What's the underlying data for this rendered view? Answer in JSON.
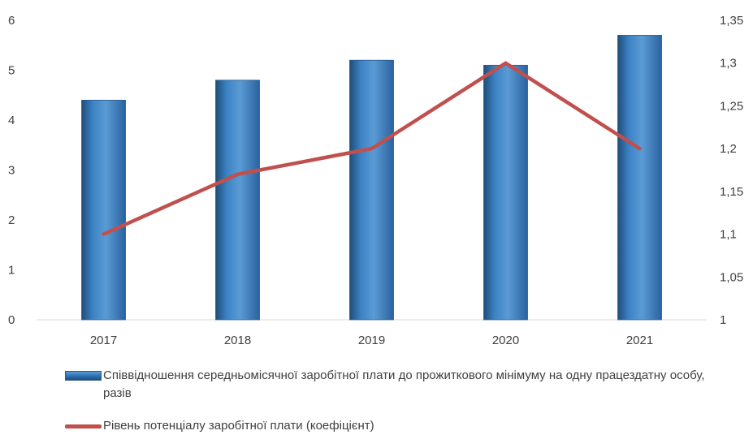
{
  "chart_data": {
    "type": "bar",
    "categories": [
      "2017",
      "2018",
      "2019",
      "2020",
      "2021"
    ],
    "series": [
      {
        "name": "Співвідношення  середньомісячної заробітної плати до прожиткового мінімуму на одну працездатну особу, разів",
        "type": "bar",
        "axis": "left",
        "values": [
          4.4,
          4.8,
          5.2,
          5.1,
          5.7
        ],
        "color": "#2e75b6"
      },
      {
        "name": "Рівень потенціалу заробітної плати (коефіцієнт)",
        "type": "line",
        "axis": "right",
        "values": [
          1.1,
          1.17,
          1.2,
          1.3,
          1.2
        ],
        "color": "#c0504d"
      }
    ],
    "y_left": {
      "ylim": [
        0,
        6
      ],
      "ticks": [
        "0",
        "1",
        "2",
        "3",
        "4",
        "5",
        "6"
      ]
    },
    "y_right": {
      "ylim": [
        1,
        1.35
      ],
      "ticks": [
        "1",
        "1,05",
        "1,1",
        "1,15",
        "1,2",
        "1,25",
        "1,3",
        "1,35"
      ]
    },
    "grid": false,
    "legend_position": "bottom"
  }
}
